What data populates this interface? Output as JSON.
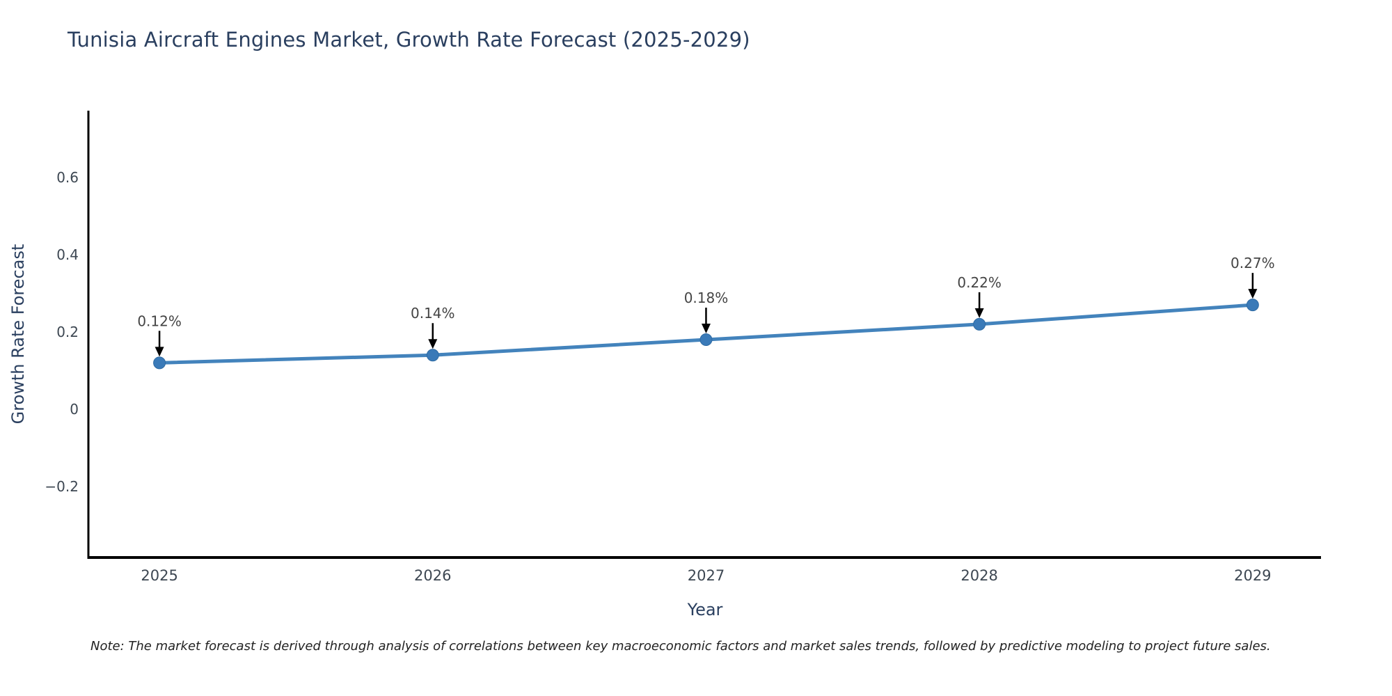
{
  "title": "Tunisia Aircraft Engines Market, Growth Rate Forecast (2025-2029)",
  "note": {
    "text": "Note: The market forecast is derived through analysis of correlations between key macroeconomic factors and market sales trends, followed by predictive modeling to project future sales."
  },
  "colors": {
    "background": "#ffffff",
    "axis": "#000000",
    "line": "#4383bc",
    "marker": "#3a7ab8",
    "marker_edge": "#2f6ba3",
    "title_text": "#2a3f5f",
    "axis_title_text": "#2a3f5f",
    "tick_text": "#3d4752",
    "annotation_text": "#444444",
    "annotation_arrow": "#000000",
    "note_text": "#222222"
  },
  "chart_data": {
    "type": "line",
    "title": "Tunisia Aircraft Engines Market, Growth Rate Forecast (2025-2029)",
    "xlabel": "Year",
    "ylabel": "Growth Rate Forecast",
    "x": [
      2025,
      2026,
      2027,
      2028,
      2029
    ],
    "series": [
      {
        "name": "Growth Rate Forecast",
        "values": [
          0.12,
          0.14,
          0.18,
          0.22,
          0.27
        ],
        "labels": [
          "0.12%",
          "0.14%",
          "0.18%",
          "0.22%",
          "0.27%"
        ]
      }
    ],
    "xlim": [
      2024.74,
      2029.25
    ],
    "ylim": [
      -0.384,
      0.773
    ],
    "xticks": [
      {
        "value": 2025,
        "label": "2025"
      },
      {
        "value": 2026,
        "label": "2026"
      },
      {
        "value": 2027,
        "label": "2027"
      },
      {
        "value": 2028,
        "label": "2028"
      },
      {
        "value": 2029,
        "label": "2029"
      }
    ],
    "yticks": [
      {
        "value": -0.2,
        "label": "−0.2"
      },
      {
        "value": 0,
        "label": "0"
      },
      {
        "value": 0.2,
        "label": "0.2"
      },
      {
        "value": 0.4,
        "label": "0.4"
      },
      {
        "value": 0.6,
        "label": "0.6"
      }
    ],
    "grid": false,
    "legend": "none",
    "annotations": "arrow-down-value-labels"
  }
}
